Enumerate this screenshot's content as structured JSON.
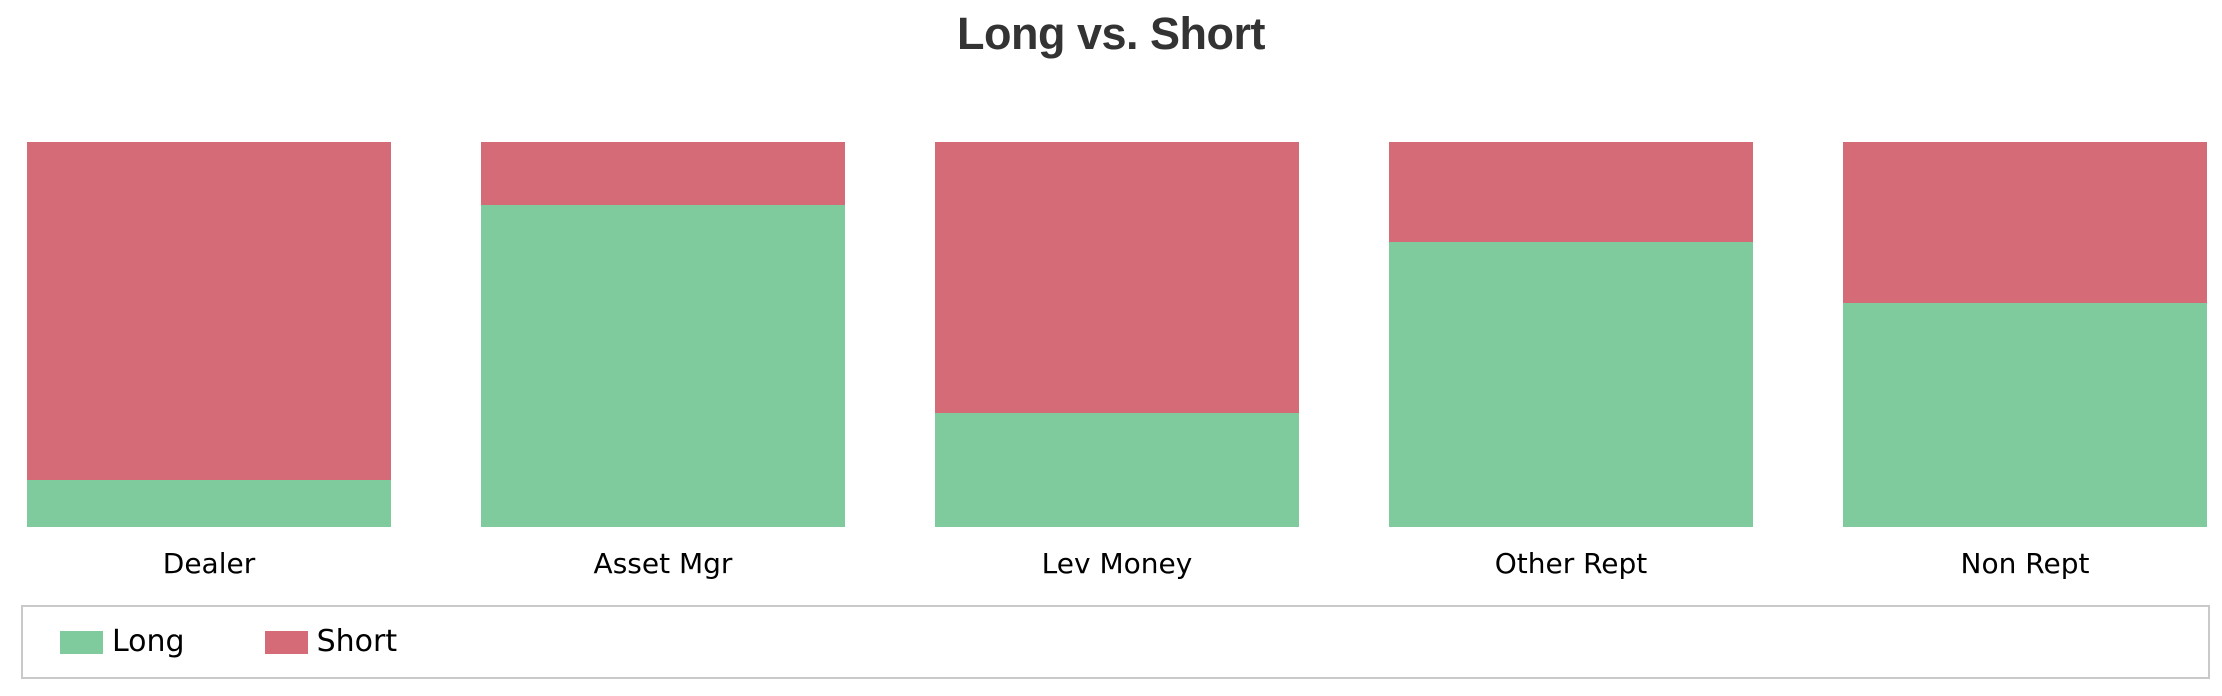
{
  "title": "Long vs. Short",
  "colors": {
    "long": "#80cb9e",
    "short": "#d56b77",
    "title_text": "#333333",
    "legend_border": "#c9c9c9",
    "background": "#ffffff",
    "label_text": "#000000"
  },
  "legend": {
    "items": [
      {
        "label": "Long",
        "color": "#80cb9e"
      },
      {
        "label": "Short",
        "color": "#d56b77"
      }
    ],
    "position": "bottom"
  },
  "chart_data": {
    "type": "bar",
    "subtype": "stacked-100-percent",
    "title": "Long vs. Short",
    "categories": [
      "Dealer",
      "Asset Mgr",
      "Lev Money",
      "Other Rept",
      "Non Rept"
    ],
    "series": [
      {
        "name": "Long",
        "color": "#80cb9e",
        "values": [
          12.2,
          83.6,
          29.6,
          74.0,
          58.2
        ]
      },
      {
        "name": "Short",
        "color": "#d56b77",
        "values": [
          87.8,
          16.4,
          70.4,
          26.0,
          41.8
        ]
      }
    ],
    "unit": "percent",
    "ylim": [
      0,
      100
    ],
    "orientation": "vertical",
    "stack_order_top_to_bottom": [
      "Short",
      "Long"
    ],
    "xlabel": "",
    "ylabel": "",
    "axes_visible": false,
    "grid": false,
    "legend_position": "bottom"
  }
}
